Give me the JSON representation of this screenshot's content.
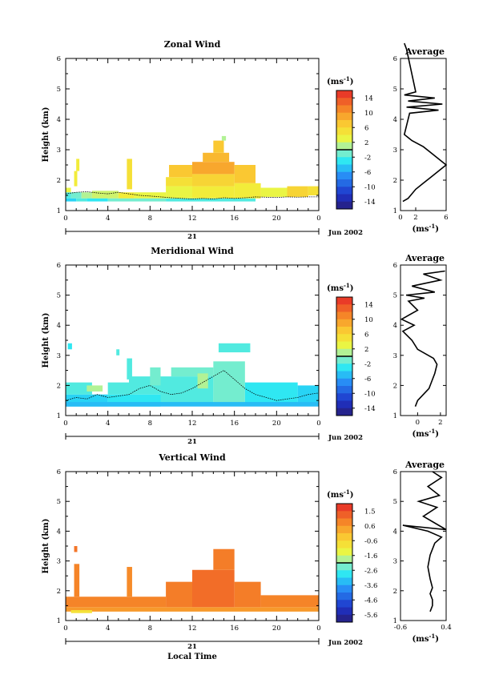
{
  "figure": {
    "date_label": "Jun 2002",
    "day_label": "21",
    "xlabel": "Local Time",
    "average_title": "Average",
    "avg_xlabel": "(ms",
    "avg_xlabel_exp": "-1",
    "avg_xlabel_close": ")",
    "cb_unit": "(ms",
    "cb_unit_exp": "-1",
    "cb_unit_close": ")"
  },
  "chart_data": [
    {
      "type": "heatmap",
      "title": "Zonal Wind",
      "ylabel": "Height (km)",
      "xlim": [
        0,
        24
      ],
      "ylim": [
        1,
        6
      ],
      "x_ticks": [
        "0",
        "4",
        "8",
        "12",
        "16",
        "20",
        "0"
      ],
      "y_ticks": [
        "1",
        "2",
        "3",
        "4",
        "5",
        "6"
      ],
      "colorbar": {
        "ticks": [
          "14",
          "10",
          "6",
          "2",
          "-2",
          "-6",
          "-10",
          "-14"
        ],
        "min": -16,
        "max": 16
      },
      "cells": [
        {
          "x0": 0.0,
          "x1": 0.5,
          "y0": 1.4,
          "y1": 1.6,
          "v": -2
        },
        {
          "x0": 0.5,
          "x1": 1.5,
          "y0": 1.4,
          "y1": 1.6,
          "v": -1
        },
        {
          "x0": 1.5,
          "x1": 2.5,
          "y0": 1.4,
          "y1": 1.6,
          "v": 1
        },
        {
          "x0": 0.0,
          "x1": 1.0,
          "y0": 1.3,
          "y1": 1.4,
          "v": -4
        },
        {
          "x0": 1.0,
          "x1": 2.0,
          "y0": 1.3,
          "y1": 1.4,
          "v": -2
        },
        {
          "x0": 0.0,
          "x1": 0.5,
          "y0": 1.6,
          "y1": 1.75,
          "v": 3
        },
        {
          "x0": 2.5,
          "x1": 5.0,
          "y0": 1.4,
          "y1": 1.65,
          "v": 2
        },
        {
          "x0": 5.0,
          "x1": 6.5,
          "y0": 1.4,
          "y1": 1.6,
          "v": 4
        },
        {
          "x0": 6.5,
          "x1": 9.5,
          "y0": 1.4,
          "y1": 1.6,
          "v": 3
        },
        {
          "x0": 2.0,
          "x1": 4.0,
          "y0": 1.3,
          "y1": 1.4,
          "v": -3
        },
        {
          "x0": 4.0,
          "x1": 9.5,
          "y0": 1.3,
          "y1": 1.4,
          "v": -1
        },
        {
          "x0": 1.0,
          "x1": 1.3,
          "y0": 2.3,
          "y1": 2.7,
          "v": 4
        },
        {
          "x0": 0.8,
          "x1": 1.1,
          "y0": 1.8,
          "y1": 2.3,
          "v": 4
        },
        {
          "x0": 5.8,
          "x1": 6.3,
          "y0": 1.7,
          "y1": 2.7,
          "v": 5
        },
        {
          "x0": 9.5,
          "x1": 12.0,
          "y0": 1.4,
          "y1": 1.8,
          "v": 3
        },
        {
          "x0": 9.5,
          "x1": 12.0,
          "y0": 1.8,
          "y1": 2.1,
          "v": 5
        },
        {
          "x0": 9.8,
          "x1": 12.0,
          "y0": 2.1,
          "y1": 2.5,
          "v": 7
        },
        {
          "x0": 12.0,
          "x1": 16.0,
          "y0": 1.4,
          "y1": 1.8,
          "v": 4
        },
        {
          "x0": 12.0,
          "x1": 16.0,
          "y0": 1.8,
          "y1": 2.2,
          "v": 6
        },
        {
          "x0": 12.0,
          "x1": 16.0,
          "y0": 2.2,
          "y1": 2.6,
          "v": 9
        },
        {
          "x0": 13.0,
          "x1": 15.5,
          "y0": 2.6,
          "y1": 2.9,
          "v": 8
        },
        {
          "x0": 14.0,
          "x1": 15.0,
          "y0": 2.9,
          "y1": 3.3,
          "v": 7
        },
        {
          "x0": 16.0,
          "x1": 18.5,
          "y0": 1.4,
          "y1": 1.9,
          "v": 4
        },
        {
          "x0": 16.0,
          "x1": 18.0,
          "y0": 1.9,
          "y1": 2.5,
          "v": 7
        },
        {
          "x0": 18.5,
          "x1": 21.0,
          "y0": 1.45,
          "y1": 1.75,
          "v": 3
        },
        {
          "x0": 21.0,
          "x1": 23.0,
          "y0": 1.45,
          "y1": 1.8,
          "v": 6
        },
        {
          "x0": 23.0,
          "x1": 24.0,
          "y0": 1.5,
          "y1": 1.8,
          "v": 5
        },
        {
          "x0": 9.5,
          "x1": 18.0,
          "y0": 1.3,
          "y1": 1.4,
          "v": -2
        },
        {
          "x0": 14.8,
          "x1": 15.2,
          "y0": 3.3,
          "y1": 3.45,
          "v": 1
        }
      ],
      "contour": [
        [
          0,
          1.55
        ],
        [
          1,
          1.6
        ],
        [
          2,
          1.62
        ],
        [
          3,
          1.58
        ],
        [
          4,
          1.55
        ],
        [
          5,
          1.6
        ],
        [
          6,
          1.55
        ],
        [
          7,
          1.5
        ],
        [
          8,
          1.48
        ],
        [
          9,
          1.45
        ],
        [
          10,
          1.42
        ],
        [
          11,
          1.4
        ],
        [
          12,
          1.38
        ],
        [
          13,
          1.4
        ],
        [
          14,
          1.38
        ],
        [
          15,
          1.42
        ],
        [
          16,
          1.4
        ],
        [
          17,
          1.42
        ],
        [
          18,
          1.45
        ],
        [
          19,
          1.44
        ],
        [
          20,
          1.43
        ],
        [
          21,
          1.45
        ],
        [
          22,
          1.44
        ],
        [
          23,
          1.45
        ],
        [
          24,
          1.45
        ]
      ],
      "average": {
        "xlim": [
          0,
          6
        ],
        "x_ticks": [
          "0",
          "2",
          "6"
        ],
        "x_tick_values": [
          0,
          2,
          6
        ],
        "profile": [
          [
            0.3,
            1.3
          ],
          [
            1.0,
            1.4
          ],
          [
            2.0,
            1.7
          ],
          [
            3.0,
            1.9
          ],
          [
            4.0,
            2.1
          ],
          [
            5.0,
            2.3
          ],
          [
            6.0,
            2.5
          ],
          [
            5.0,
            2.7
          ],
          [
            4.0,
            2.9
          ],
          [
            3.0,
            3.1
          ],
          [
            1.5,
            3.3
          ],
          [
            0.5,
            3.5
          ],
          [
            1.2,
            4.2
          ],
          [
            5.0,
            4.3
          ],
          [
            0.8,
            4.4
          ],
          [
            5.5,
            4.5
          ],
          [
            1.0,
            4.6
          ],
          [
            4.5,
            4.7
          ],
          [
            0.5,
            4.8
          ],
          [
            2.0,
            4.9
          ],
          [
            0.8,
            6.3
          ],
          [
            0.5,
            6.5
          ]
        ]
      }
    },
    {
      "type": "heatmap",
      "title": "Meridional Wind",
      "ylabel": "Height (km)",
      "xlim": [
        0,
        24
      ],
      "ylim": [
        1,
        6
      ],
      "x_ticks": [
        "0",
        "4",
        "8",
        "12",
        "16",
        "20",
        "0"
      ],
      "y_ticks": [
        "1",
        "2",
        "3",
        "4",
        "5",
        "6"
      ],
      "colorbar": {
        "ticks": [
          "14",
          "10",
          "6",
          "2",
          "-2",
          "-6",
          "-10",
          "-14"
        ],
        "min": -16,
        "max": 16
      },
      "cells": [
        {
          "x0": 0.0,
          "x1": 4.0,
          "y0": 1.3,
          "y1": 1.7,
          "v": -4
        },
        {
          "x0": 0.0,
          "x1": 2.5,
          "y0": 1.7,
          "y1": 2.1,
          "v": -2
        },
        {
          "x0": 4.0,
          "x1": 9.0,
          "y0": 1.3,
          "y1": 1.7,
          "v": -3
        },
        {
          "x0": 4.0,
          "x1": 6.5,
          "y0": 1.7,
          "y1": 2.1,
          "v": -2
        },
        {
          "x0": 6.0,
          "x1": 9.0,
          "y0": 1.7,
          "y1": 2.3,
          "v": -2
        },
        {
          "x0": 9.0,
          "x1": 14.0,
          "y0": 1.4,
          "y1": 2.3,
          "v": -2
        },
        {
          "x0": 10.0,
          "x1": 14.0,
          "y0": 2.3,
          "y1": 2.6,
          "v": -1
        },
        {
          "x0": 14.0,
          "x1": 17.0,
          "y0": 1.4,
          "y1": 2.8,
          "v": -1
        },
        {
          "x0": 17.0,
          "x1": 22.0,
          "y0": 1.4,
          "y1": 2.1,
          "v": -3
        },
        {
          "x0": 22.0,
          "x1": 24.0,
          "y0": 1.4,
          "y1": 2.0,
          "v": -4
        },
        {
          "x0": 0.0,
          "x1": 24.0,
          "y0": 1.3,
          "y1": 1.45,
          "v": -5
        },
        {
          "x0": 5.8,
          "x1": 6.3,
          "y0": 2.2,
          "y1": 2.9,
          "v": -2
        },
        {
          "x0": 8.0,
          "x1": 9.0,
          "y0": 2.0,
          "y1": 2.6,
          "v": -1
        },
        {
          "x0": 14.5,
          "x1": 17.5,
          "y0": 3.1,
          "y1": 3.4,
          "v": -2
        },
        {
          "x0": 0.2,
          "x1": 0.6,
          "y0": 3.2,
          "y1": 3.4,
          "v": -3
        },
        {
          "x0": 4.8,
          "x1": 5.1,
          "y0": 3.0,
          "y1": 3.2,
          "v": -2
        },
        {
          "x0": 12.5,
          "x1": 13.5,
          "y0": 1.9,
          "y1": 2.4,
          "v": 1
        },
        {
          "x0": 2.0,
          "x1": 3.5,
          "y0": 1.8,
          "y1": 2.0,
          "v": 1
        }
      ],
      "contour": [
        [
          0,
          1.5
        ],
        [
          1,
          1.6
        ],
        [
          2,
          1.55
        ],
        [
          3,
          1.7
        ],
        [
          4,
          1.6
        ],
        [
          5,
          1.65
        ],
        [
          6,
          1.7
        ],
        [
          7,
          1.9
        ],
        [
          8,
          2.0
        ],
        [
          9,
          1.8
        ],
        [
          10,
          1.7
        ],
        [
          11,
          1.75
        ],
        [
          12,
          1.9
        ],
        [
          13,
          2.1
        ],
        [
          14,
          2.3
        ],
        [
          15,
          2.5
        ],
        [
          16,
          2.2
        ],
        [
          17,
          1.9
        ],
        [
          18,
          1.7
        ],
        [
          19,
          1.6
        ],
        [
          20,
          1.5
        ],
        [
          21,
          1.55
        ],
        [
          22,
          1.6
        ],
        [
          23,
          1.7
        ],
        [
          24,
          1.75
        ]
      ],
      "average": {
        "xlim": [
          -1.5,
          2.5
        ],
        "x_ticks": [
          "0",
          "2"
        ],
        "x_tick_values": [
          0,
          2
        ],
        "profile": [
          [
            -0.2,
            1.3
          ],
          [
            0.0,
            1.5
          ],
          [
            0.5,
            1.7
          ],
          [
            1.0,
            1.9
          ],
          [
            1.2,
            2.1
          ],
          [
            1.5,
            2.4
          ],
          [
            1.7,
            2.7
          ],
          [
            1.4,
            2.9
          ],
          [
            0.0,
            3.2
          ],
          [
            -0.5,
            3.5
          ],
          [
            -1.3,
            3.8
          ],
          [
            -0.3,
            4.0
          ],
          [
            -1.4,
            4.2
          ],
          [
            0.0,
            4.5
          ],
          [
            -0.8,
            4.8
          ],
          [
            0.6,
            4.9
          ],
          [
            -1.0,
            5.0
          ],
          [
            1.5,
            5.1
          ],
          [
            -0.5,
            5.3
          ],
          [
            2.0,
            5.5
          ],
          [
            0.5,
            5.7
          ],
          [
            2.4,
            5.8
          ]
        ]
      }
    },
    {
      "type": "heatmap",
      "title": "Vertical Wind",
      "ylabel": "Height (km)",
      "xlim": [
        0,
        24
      ],
      "ylim": [
        1,
        6
      ],
      "x_ticks": [
        "0",
        "4",
        "8",
        "12",
        "16",
        "20",
        "0"
      ],
      "y_ticks": [
        "1",
        "2",
        "3",
        "4",
        "5",
        "6"
      ],
      "colorbar": {
        "ticks": [
          "1.5",
          "0.6",
          "-0.6",
          "-1.6",
          "-2.6",
          "-3.6",
          "-4.6",
          "-5.6"
        ],
        "min": -6.0,
        "max": 1.8
      },
      "cells": [
        {
          "x0": 0.0,
          "x1": 24.0,
          "y0": 1.3,
          "y1": 1.45,
          "v": 0.3
        },
        {
          "x0": 0.0,
          "x1": 9.5,
          "y0": 1.45,
          "y1": 1.8,
          "v": 0.6
        },
        {
          "x0": 0.8,
          "x1": 1.3,
          "y0": 1.8,
          "y1": 2.9,
          "v": 0.6
        },
        {
          "x0": 5.8,
          "x1": 6.3,
          "y0": 1.8,
          "y1": 2.8,
          "v": 0.5
        },
        {
          "x0": 9.5,
          "x1": 12.0,
          "y0": 1.45,
          "y1": 2.3,
          "v": 0.7
        },
        {
          "x0": 12.0,
          "x1": 16.0,
          "y0": 1.45,
          "y1": 2.7,
          "v": 0.9
        },
        {
          "x0": 14.0,
          "x1": 16.0,
          "y0": 2.7,
          "y1": 3.4,
          "v": 0.7
        },
        {
          "x0": 16.0,
          "x1": 18.5,
          "y0": 1.45,
          "y1": 2.3,
          "v": 0.7
        },
        {
          "x0": 18.5,
          "x1": 24.0,
          "y0": 1.45,
          "y1": 1.85,
          "v": 0.6
        },
        {
          "x0": 0.8,
          "x1": 1.1,
          "y0": 3.3,
          "y1": 3.5,
          "v": 0.8
        },
        {
          "x0": 0.5,
          "x1": 2.5,
          "y0": 1.25,
          "y1": 1.35,
          "v": -0.9
        }
      ],
      "contour": [],
      "average": {
        "xlim": [
          -0.6,
          0.4
        ],
        "x_ticks": [
          "-0.6",
          "0.4"
        ],
        "x_tick_values": [
          -0.6,
          0.4
        ],
        "profile": [
          [
            0.05,
            1.3
          ],
          [
            0.1,
            1.5
          ],
          [
            0.1,
            1.7
          ],
          [
            0.05,
            1.9
          ],
          [
            0.1,
            2.1
          ],
          [
            0.05,
            2.4
          ],
          [
            0.0,
            2.8
          ],
          [
            0.05,
            3.2
          ],
          [
            0.15,
            3.6
          ],
          [
            0.3,
            3.8
          ],
          [
            0.0,
            4.0
          ],
          [
            -0.55,
            4.2
          ],
          [
            0.4,
            4.05
          ],
          [
            -0.1,
            4.5
          ],
          [
            0.2,
            4.8
          ],
          [
            -0.2,
            5.0
          ],
          [
            0.25,
            5.2
          ],
          [
            0.0,
            5.5
          ],
          [
            0.3,
            5.8
          ],
          [
            0.1,
            6.0
          ]
        ]
      }
    }
  ]
}
